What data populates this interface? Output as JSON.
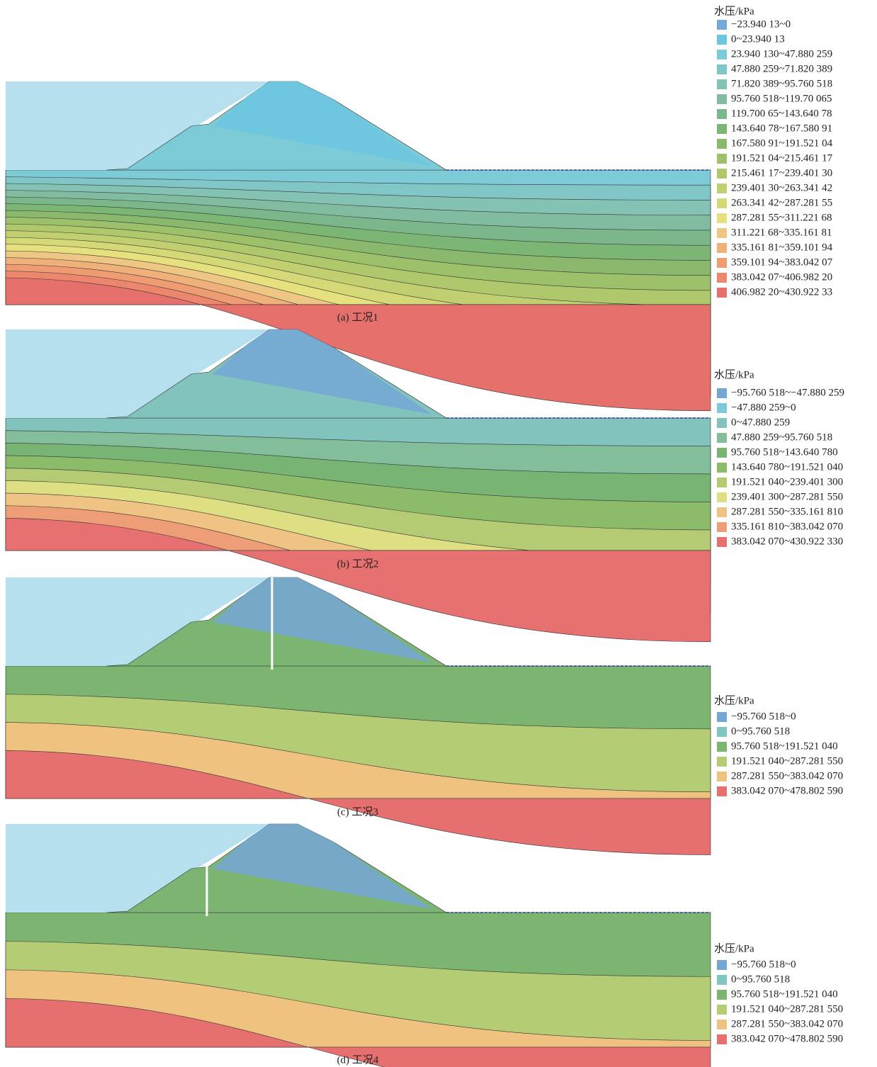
{
  "panels": [
    {
      "caption": "(a) 工况1",
      "legend": {
        "title": "水压/kPa",
        "items": [
          {
            "label": "−23.940 13~0",
            "color": "#74a9d8"
          },
          {
            "label": "0~23.940 13",
            "color": "#6cc6e0"
          },
          {
            "label": "23.940 130~47.880 259",
            "color": "#7ccbd6"
          },
          {
            "label": "47.880 259~71.820 389",
            "color": "#80c6c6"
          },
          {
            "label": "71.820 389~95.760 518",
            "color": "#84c2b4"
          },
          {
            "label": "95.760 518~119.70 065",
            "color": "#82bca0"
          },
          {
            "label": "119.700 65~143.640 78",
            "color": "#7bb78a"
          },
          {
            "label": "143.640 78~167.580 91",
            "color": "#7cb675"
          },
          {
            "label": "167.580 91~191.521 04",
            "color": "#8ab86c"
          },
          {
            "label": "191.521 04~215.461 17",
            "color": "#9dc06a"
          },
          {
            "label": "215.461 17~239.401 30",
            "color": "#b0c86c"
          },
          {
            "label": "239.401 30~263.341 42",
            "color": "#c2cf70"
          },
          {
            "label": "263.341 42~287.281 55",
            "color": "#d5d877"
          },
          {
            "label": "287.281 55~311.221 68",
            "color": "#e7e07f"
          },
          {
            "label": "311.221 68~335.161 81",
            "color": "#eec785"
          },
          {
            "label": "335.161 81~359.101 94",
            "color": "#f0b07a"
          },
          {
            "label": "359.101 94~383.042 07",
            "color": "#ef9c72"
          },
          {
            "label": "383.042 07~406.982 20",
            "color": "#ec876d"
          },
          {
            "label": "406.982 20~430.922 33",
            "color": "#e6716c"
          }
        ]
      }
    },
    {
      "caption": "(b) 工况2",
      "legend": {
        "title": "水压/kPa",
        "items": [
          {
            "label": "−95.760 518~−47.880 259",
            "color": "#74a7d6"
          },
          {
            "label": "−47.880 259~0",
            "color": "#7cc9d9"
          },
          {
            "label": "0~47.880 259",
            "color": "#82c4bd"
          },
          {
            "label": "47.880 259~95.760 518",
            "color": "#82be9a"
          },
          {
            "label": "95.760 518~143.640 780",
            "color": "#78b474"
          },
          {
            "label": "143.640 780~191.521 040",
            "color": "#8cbb6a"
          },
          {
            "label": "191.521 040~239.401 300",
            "color": "#b4cb74"
          },
          {
            "label": "239.401 300~287.281 550",
            "color": "#dede82"
          },
          {
            "label": "287.281 550~335.161 810",
            "color": "#efc383"
          },
          {
            "label": "335.161 810~383.042 070",
            "color": "#ee9e76"
          },
          {
            "label": "383.042 070~430.922 330",
            "color": "#e67170"
          }
        ]
      }
    },
    {
      "caption": "(c) 工况3",
      "legend": {
        "title": "水压/kPa",
        "items": [
          {
            "label": "−95.760 518~0",
            "color": "#74a7d6"
          },
          {
            "label": "0~95.760 518",
            "color": "#7fc5c0"
          },
          {
            "label": "95.760 518~191.521 040",
            "color": "#7cb571"
          },
          {
            "label": "191.521 040~287.281 550",
            "color": "#b4cc74"
          },
          {
            "label": "287.281 550~383.042 070",
            "color": "#f0c27f"
          },
          {
            "label": "383.042 070~478.802 590",
            "color": "#e6706f"
          }
        ]
      }
    },
    {
      "caption": "(d) 工况4",
      "legend": {
        "title": "水压/kPa",
        "items": [
          {
            "label": "−95.760 518~0",
            "color": "#74a7d6"
          },
          {
            "label": "0~95.760 518",
            "color": "#7fc5c0"
          },
          {
            "label": "95.760 518~191.521 040",
            "color": "#7cb571"
          },
          {
            "label": "191.521 040~287.281 550",
            "color": "#b4cc74"
          },
          {
            "label": "287.281 550~383.042 070",
            "color": "#f0c27f"
          },
          {
            "label": "383.042 070~478.802 590",
            "color": "#e6706f"
          }
        ]
      }
    }
  ]
}
